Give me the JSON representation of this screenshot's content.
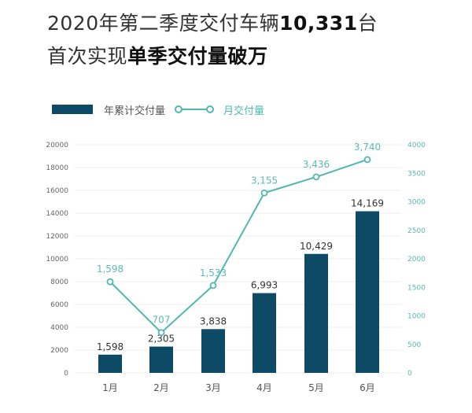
{
  "header": {
    "line1_prefix": "2020年第二季度交付车辆",
    "line1_bold": "10,331",
    "line1_suffix": "台",
    "line2_prefix": "首次实现",
    "line2_bold": "单季交付量破万"
  },
  "colors": {
    "bar": "#0d4a66",
    "line": "#4fb9b0",
    "grid": "#ececec"
  },
  "chart_data": {
    "type": "bar",
    "title": "2020年第二季度交付车辆10,331台 首次实现单季交付量破万",
    "categories": [
      "1月",
      "2月",
      "3月",
      "4月",
      "5月",
      "6月"
    ],
    "series": [
      {
        "name": "年累计交付量",
        "type": "bar",
        "axis": "left",
        "values": [
          1598,
          2305,
          3838,
          6993,
          10429,
          14169
        ],
        "labels": [
          "1,598",
          "2,305",
          "3,838",
          "6,993",
          "10,429",
          "14,169"
        ]
      },
      {
        "name": "月交付量",
        "type": "line",
        "axis": "right",
        "values": [
          1598,
          707,
          1533,
          3155,
          3436,
          3740
        ],
        "labels": [
          "1,598",
          "707",
          "1,533",
          "3,155",
          "3,436",
          "3,740"
        ]
      }
    ],
    "left_axis": {
      "ylim": [
        0,
        20000
      ],
      "ticks": [
        "0",
        "2000",
        "4000",
        "6000",
        "8000",
        "10000",
        "12000",
        "14000",
        "16000",
        "18000",
        "20000"
      ]
    },
    "right_axis": {
      "ylim": [
        0,
        4000
      ],
      "ticks": [
        "0",
        "500",
        "1000",
        "1500",
        "2000",
        "2500",
        "3000",
        "3500",
        "4000"
      ]
    },
    "xlabel": "",
    "ylabel": "",
    "grid": true,
    "legend": "top-left"
  }
}
